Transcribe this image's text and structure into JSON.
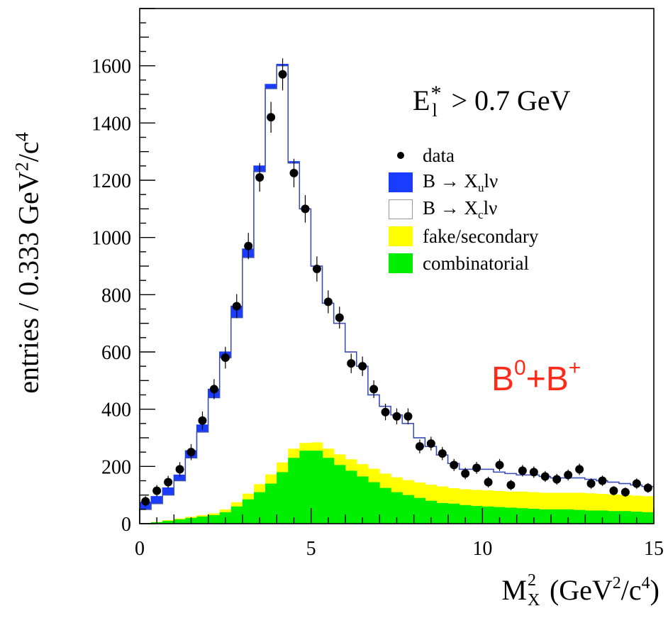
{
  "chart_data": {
    "type": "histogram",
    "xlabel": {
      "main": "M",
      "sup": "2",
      "sub": "X",
      "rest": " (GeV",
      "unit_sup1": "2",
      "mid": "/c",
      "unit_sup2": "4",
      "end": ")"
    },
    "ylabel": {
      "a": "entries / 0.333 GeV",
      "sup1": "2",
      "b": "/c",
      "sup2": "4"
    },
    "xlim": [
      0,
      15
    ],
    "ylim": [
      0,
      1800
    ],
    "x_ticks": [
      0,
      5,
      10,
      15
    ],
    "y_ticks": [
      0,
      200,
      400,
      600,
      800,
      1000,
      1200,
      1400,
      1600
    ],
    "bin_width": 0.333,
    "bin_edges_start": 0,
    "annotation": {
      "main": "E",
      "sup": "*",
      "sub": "l",
      "rest": " > 0.7 GeV"
    },
    "sample_label": {
      "a": "B",
      "sup1": "0",
      "b": "+B",
      "sup2": "+"
    },
    "legend": [
      {
        "key": "data",
        "label": "data",
        "sub": "",
        "rest": "",
        "color": "#000000"
      },
      {
        "key": "xulnu",
        "label": "B → X",
        "sub": "u",
        "rest": "lν",
        "color": "#1a3cff"
      },
      {
        "key": "xclnu",
        "label": "B → X",
        "sub": "c",
        "rest": "lν",
        "color": "#ffffff"
      },
      {
        "key": "fake",
        "label": "fake/secondary",
        "sub": "",
        "rest": "",
        "color": "#ffff00"
      },
      {
        "key": "comb",
        "label": "combinatorial",
        "sub": "",
        "rest": "",
        "color": "#00ee00"
      }
    ],
    "series": [
      {
        "key": "comb",
        "values": [
          2,
          5,
          10,
          15,
          20,
          25,
          30,
          40,
          60,
          85,
          110,
          140,
          180,
          230,
          255,
          255,
          230,
          205,
          185,
          165,
          145,
          125,
          110,
          100,
          90,
          80,
          72,
          70,
          65,
          62,
          60,
          58,
          56,
          54,
          52,
          50,
          50,
          50,
          48,
          46,
          46,
          44,
          44,
          42,
          40
        ]
      },
      {
        "key": "fake_total",
        "values": [
          2,
          6,
          12,
          18,
          24,
          30,
          36,
          50,
          75,
          105,
          138,
          172,
          214,
          262,
          282,
          284,
          262,
          242,
          225,
          208,
          192,
          175,
          162,
          152,
          144,
          136,
          130,
          124,
          120,
          118,
          116,
          114,
          112,
          112,
          110,
          108,
          108,
          108,
          108,
          106,
          104,
          102,
          100,
          98,
          96
        ]
      },
      {
        "key": "xclnu_total",
        "values": [
          50,
          70,
          100,
          150,
          230,
          320,
          440,
          580,
          720,
          930,
          1230,
          1520,
          1600,
          1260,
          1100,
          900,
          770,
          700,
          600,
          550,
          450,
          410,
          380,
          350,
          300,
          270,
          240,
          210,
          190,
          190,
          190,
          180,
          175,
          170,
          170,
          165,
          160,
          160,
          160,
          155,
          150,
          145,
          140,
          135,
          130
        ]
      },
      {
        "key": "xulnu_total",
        "values": [
          75,
          95,
          125,
          170,
          255,
          345,
          470,
          600,
          760,
          960,
          1250,
          1535,
          1605,
          1265,
          1100,
          900,
          770,
          700,
          600,
          550,
          450,
          410,
          380,
          350,
          300,
          270,
          240,
          210,
          190,
          190,
          190,
          180,
          175,
          170,
          170,
          165,
          160,
          160,
          160,
          155,
          150,
          145,
          140,
          135,
          130
        ]
      }
    ],
    "data_points": [
      {
        "x": 0.17,
        "y": 78,
        "err": 18
      },
      {
        "x": 0.5,
        "y": 115,
        "err": 20
      },
      {
        "x": 0.83,
        "y": 145,
        "err": 22
      },
      {
        "x": 1.17,
        "y": 190,
        "err": 25
      },
      {
        "x": 1.5,
        "y": 250,
        "err": 28
      },
      {
        "x": 1.83,
        "y": 360,
        "err": 32
      },
      {
        "x": 2.17,
        "y": 470,
        "err": 35
      },
      {
        "x": 2.5,
        "y": 580,
        "err": 38
      },
      {
        "x": 2.83,
        "y": 760,
        "err": 42
      },
      {
        "x": 3.17,
        "y": 970,
        "err": 46
      },
      {
        "x": 3.5,
        "y": 1210,
        "err": 50
      },
      {
        "x": 3.83,
        "y": 1420,
        "err": 54
      },
      {
        "x": 4.17,
        "y": 1570,
        "err": 56
      },
      {
        "x": 4.5,
        "y": 1225,
        "err": 50
      },
      {
        "x": 4.83,
        "y": 1100,
        "err": 48
      },
      {
        "x": 5.17,
        "y": 890,
        "err": 44
      },
      {
        "x": 5.5,
        "y": 775,
        "err": 40
      },
      {
        "x": 5.83,
        "y": 720,
        "err": 38
      },
      {
        "x": 6.17,
        "y": 560,
        "err": 34
      },
      {
        "x": 6.5,
        "y": 550,
        "err": 34
      },
      {
        "x": 6.83,
        "y": 470,
        "err": 31
      },
      {
        "x": 7.17,
        "y": 390,
        "err": 29
      },
      {
        "x": 7.5,
        "y": 375,
        "err": 28
      },
      {
        "x": 7.83,
        "y": 375,
        "err": 28
      },
      {
        "x": 8.17,
        "y": 270,
        "err": 24
      },
      {
        "x": 8.5,
        "y": 280,
        "err": 24
      },
      {
        "x": 8.83,
        "y": 245,
        "err": 23
      },
      {
        "x": 9.17,
        "y": 205,
        "err": 21
      },
      {
        "x": 9.5,
        "y": 175,
        "err": 20
      },
      {
        "x": 9.83,
        "y": 195,
        "err": 21
      },
      {
        "x": 10.17,
        "y": 145,
        "err": 19
      },
      {
        "x": 10.5,
        "y": 205,
        "err": 21
      },
      {
        "x": 10.83,
        "y": 135,
        "err": 18
      },
      {
        "x": 11.17,
        "y": 185,
        "err": 20
      },
      {
        "x": 11.5,
        "y": 180,
        "err": 20
      },
      {
        "x": 11.83,
        "y": 165,
        "err": 19
      },
      {
        "x": 12.17,
        "y": 155,
        "err": 19
      },
      {
        "x": 12.5,
        "y": 170,
        "err": 19
      },
      {
        "x": 12.83,
        "y": 190,
        "err": 20
      },
      {
        "x": 13.17,
        "y": 140,
        "err": 18
      },
      {
        "x": 13.5,
        "y": 150,
        "err": 18
      },
      {
        "x": 13.83,
        "y": 115,
        "err": 16
      },
      {
        "x": 14.17,
        "y": 110,
        "err": 16
      },
      {
        "x": 14.5,
        "y": 140,
        "err": 18
      },
      {
        "x": 14.83,
        "y": 125,
        "err": 17
      }
    ]
  }
}
